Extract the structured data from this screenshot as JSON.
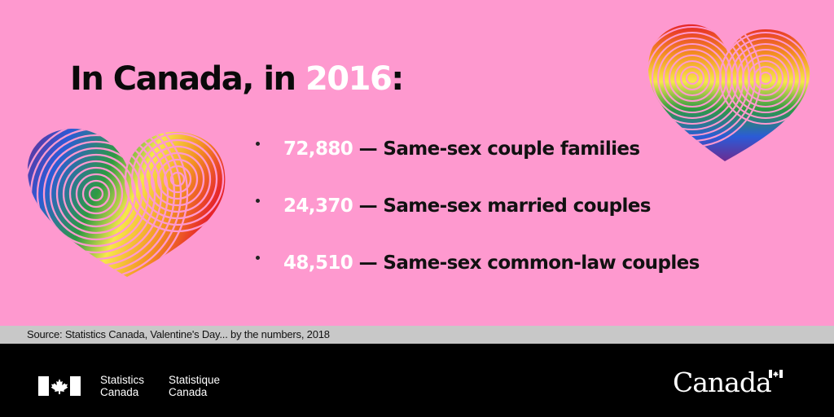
{
  "headline": {
    "prefix": "In Canada, in ",
    "year": "2016",
    "suffix": ":"
  },
  "stats": [
    {
      "value": "72,880",
      "sep": " — ",
      "label": "Same-sex couple families"
    },
    {
      "value": "24,370",
      "sep": " — ",
      "label": "Same-sex married couples"
    },
    {
      "value": "48,510",
      "sep": " — ",
      "label": "Same-sex common-law couples"
    }
  ],
  "source": "Source: Statistics Canada, Valentine's Day... by the numbers, 2018",
  "footer": {
    "agency_en": [
      "Statistics",
      "Canada"
    ],
    "agency_fr": [
      "Statistique",
      "Canada"
    ],
    "wordmark": "Canada"
  },
  "decorations": {
    "left_heart": "rainbow-fingerprint-heart-icon",
    "right_heart": "rainbow-fingerprint-heart-icon",
    "flag": "canada-flag-icon"
  },
  "colors": {
    "background": "#fe99cf",
    "highlight": "#ffffff",
    "text": "#0a0a0a",
    "source_bar": "#c8c8c8",
    "footer": "#000000",
    "flag_red": "#e3000b",
    "rainbow": [
      "#e6252a",
      "#f39122",
      "#f6e84a",
      "#2e9a42",
      "#2b5bd7",
      "#6b2c91"
    ]
  }
}
